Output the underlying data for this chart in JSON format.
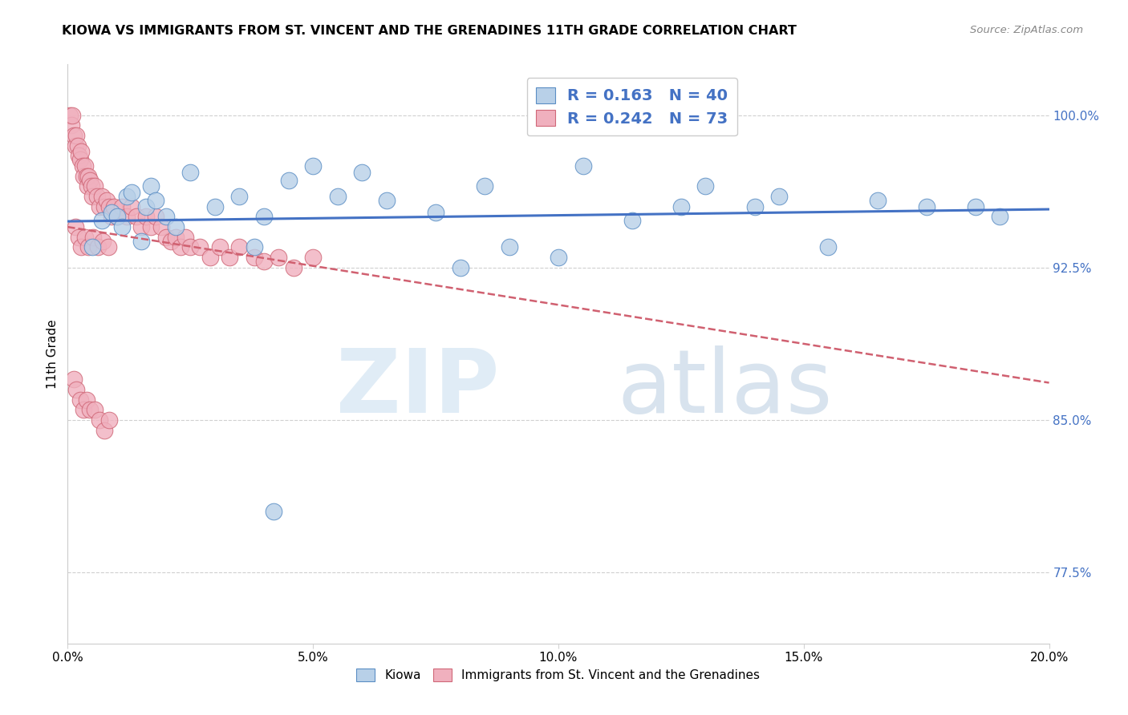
{
  "title": "KIOWA VS IMMIGRANTS FROM ST. VINCENT AND THE GRENADINES 11TH GRADE CORRELATION CHART",
  "source": "Source: ZipAtlas.com",
  "xlabel_vals": [
    0.0,
    5.0,
    10.0,
    15.0,
    20.0
  ],
  "ylabel_vals": [
    77.5,
    85.0,
    92.5,
    100.0
  ],
  "xlim": [
    0.0,
    20.0
  ],
  "ylim": [
    74.0,
    102.5
  ],
  "legend_label1": "Kiowa",
  "legend_label2": "Immigrants from St. Vincent and the Grenadines",
  "r1": 0.163,
  "n1": 40,
  "r2": 0.242,
  "n2": 73,
  "color_blue_fill": "#b8d0e8",
  "color_blue_edge": "#5b8ec4",
  "color_pink_fill": "#f0b0be",
  "color_pink_edge": "#d06878",
  "color_trend_blue": "#4472c4",
  "color_trend_pink": "#d06070",
  "blue_x": [
    0.5,
    0.7,
    0.9,
    1.0,
    1.1,
    1.2,
    1.3,
    1.5,
    1.6,
    1.7,
    1.8,
    2.0,
    2.2,
    2.5,
    3.0,
    3.5,
    4.0,
    4.5,
    5.0,
    5.5,
    6.5,
    7.5,
    8.5,
    9.0,
    10.0,
    11.5,
    13.0,
    14.5,
    15.5,
    17.5,
    19.0,
    3.8,
    6.0,
    4.2,
    8.0,
    10.5,
    12.5,
    14.0,
    16.5,
    18.5
  ],
  "blue_y": [
    93.5,
    94.8,
    95.2,
    95.0,
    94.5,
    96.0,
    96.2,
    93.8,
    95.5,
    96.5,
    95.8,
    95.0,
    94.5,
    97.2,
    95.5,
    96.0,
    95.0,
    96.8,
    97.5,
    96.0,
    95.8,
    95.2,
    96.5,
    93.5,
    93.0,
    94.8,
    96.5,
    96.0,
    93.5,
    95.5,
    95.0,
    93.5,
    97.2,
    80.5,
    92.5,
    97.5,
    95.5,
    95.5,
    95.8,
    95.5
  ],
  "pink_x": [
    0.05,
    0.08,
    0.1,
    0.12,
    0.15,
    0.18,
    0.2,
    0.22,
    0.25,
    0.28,
    0.3,
    0.32,
    0.35,
    0.38,
    0.4,
    0.42,
    0.45,
    0.48,
    0.5,
    0.55,
    0.6,
    0.65,
    0.7,
    0.75,
    0.8,
    0.85,
    0.9,
    0.95,
    1.0,
    1.1,
    1.2,
    1.3,
    1.4,
    1.5,
    1.6,
    1.7,
    1.8,
    1.9,
    2.0,
    2.1,
    2.2,
    2.3,
    2.4,
    2.5,
    2.7,
    2.9,
    3.1,
    3.3,
    3.5,
    3.8,
    4.0,
    4.3,
    4.6,
    5.0,
    0.15,
    0.22,
    0.28,
    0.35,
    0.42,
    0.52,
    0.62,
    0.72,
    0.82,
    0.12,
    0.18,
    0.25,
    0.32,
    0.38,
    0.45,
    0.55,
    0.65,
    0.75,
    0.85
  ],
  "pink_y": [
    100.0,
    99.5,
    100.0,
    99.0,
    98.5,
    99.0,
    98.5,
    98.0,
    97.8,
    98.2,
    97.5,
    97.0,
    97.5,
    97.0,
    96.5,
    97.0,
    96.8,
    96.5,
    96.0,
    96.5,
    96.0,
    95.5,
    96.0,
    95.5,
    95.8,
    95.5,
    95.0,
    95.5,
    95.0,
    95.5,
    95.0,
    95.5,
    95.0,
    94.5,
    95.0,
    94.5,
    95.0,
    94.5,
    94.0,
    93.8,
    94.0,
    93.5,
    94.0,
    93.5,
    93.5,
    93.0,
    93.5,
    93.0,
    93.5,
    93.0,
    92.8,
    93.0,
    92.5,
    93.0,
    94.5,
    94.0,
    93.5,
    94.0,
    93.5,
    94.0,
    93.5,
    93.8,
    93.5,
    87.0,
    86.5,
    86.0,
    85.5,
    86.0,
    85.5,
    85.5,
    85.0,
    84.5,
    85.0
  ]
}
